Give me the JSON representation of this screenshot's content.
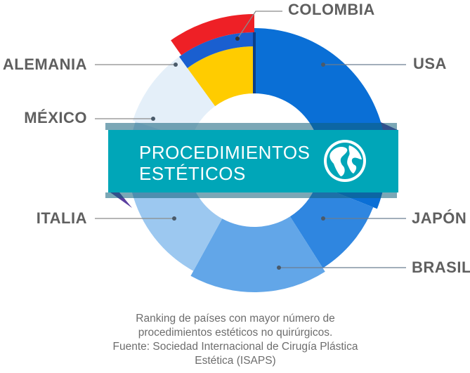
{
  "chart_data": {
    "type": "donut",
    "title": "",
    "center_label": [
      "PROCEDIMIENTOS",
      "ESTÉTICOS"
    ],
    "globe_icon": "globe-icon",
    "categories": [
      "USA",
      "JAPÓN",
      "BRASIL",
      "ITALIA",
      "MÉXICO",
      "ALEMANIA",
      "COLOMBIA"
    ],
    "colors": [
      "#0a6fd6",
      "#2f86e0",
      "#62a6e8",
      "#9cc8f0",
      "#cde2f7",
      "#e4eff9",
      "#ffcc00"
    ],
    "values": [
      31,
      10,
      17,
      13,
      9,
      10,
      10
    ],
    "colombia_flag_colors": [
      "#ffcc00",
      "#1a5fd0",
      "#ee2026"
    ],
    "banner_color": "#00a6b8"
  },
  "caption": {
    "lines": [
      "Ranking de países con mayor número de",
      "procedimientos estéticos no quirúrgicos.",
      "Fuente: Sociedad Internacional de Cirugía Plástica",
      "Estética (ISAPS)"
    ]
  }
}
